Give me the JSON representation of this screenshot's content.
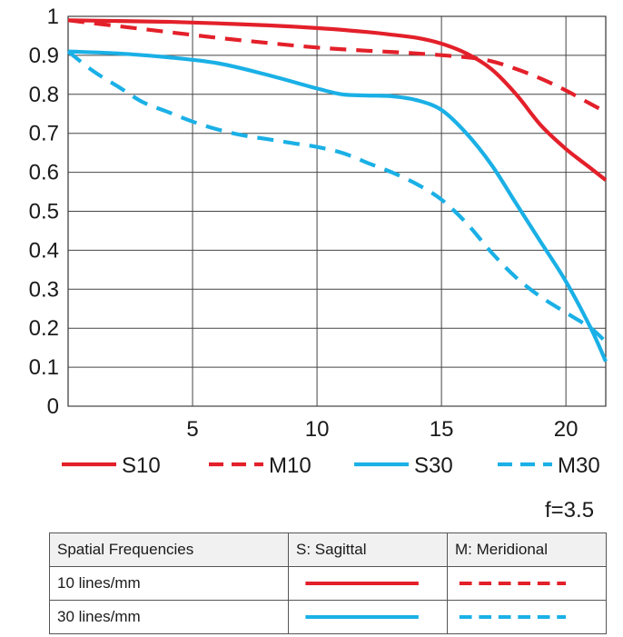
{
  "chart_data": {
    "type": "line",
    "title": "",
    "xlabel": "",
    "ylabel": "",
    "xlim": [
      0,
      21.6
    ],
    "ylim": [
      0,
      1
    ],
    "xticks": [
      5,
      10,
      15,
      20
    ],
    "yticks": [
      0,
      0.1,
      0.2,
      0.3,
      0.4,
      0.5,
      0.6,
      0.7,
      0.8,
      0.9,
      1
    ],
    "ytick_labels": [
      "0",
      "0.1",
      "0.2",
      "0.3",
      "0.4",
      "0.5",
      "0.6",
      "0.7",
      "0.8",
      "0.9",
      "1"
    ],
    "grid": true,
    "series": [
      {
        "name": "S10",
        "color": "#e3202a",
        "style": "solid",
        "x": [
          0,
          2,
          4,
          6,
          8,
          10,
          12,
          13,
          14,
          15,
          16,
          17,
          18,
          19,
          20,
          21,
          21.6
        ],
        "y": [
          0.99,
          0.988,
          0.986,
          0.982,
          0.977,
          0.97,
          0.96,
          0.953,
          0.945,
          0.93,
          0.905,
          0.865,
          0.8,
          0.72,
          0.66,
          0.61,
          0.58
        ]
      },
      {
        "name": "M10",
        "color": "#e3202a",
        "style": "dashed",
        "x": [
          0,
          2,
          4,
          6,
          8,
          10,
          12,
          14,
          16,
          17,
          18,
          19,
          20,
          21,
          21.6
        ],
        "y": [
          0.99,
          0.975,
          0.96,
          0.945,
          0.932,
          0.92,
          0.912,
          0.905,
          0.895,
          0.885,
          0.865,
          0.84,
          0.81,
          0.775,
          0.755
        ]
      },
      {
        "name": "S30",
        "color": "#1ab0e6",
        "style": "solid",
        "x": [
          0,
          2,
          4,
          6,
          8,
          10,
          11,
          12,
          13,
          14,
          15,
          16,
          17,
          18,
          19,
          20,
          21,
          21.6
        ],
        "y": [
          0.91,
          0.905,
          0.895,
          0.88,
          0.85,
          0.815,
          0.8,
          0.797,
          0.795,
          0.785,
          0.76,
          0.7,
          0.62,
          0.52,
          0.42,
          0.32,
          0.2,
          0.115
        ]
      },
      {
        "name": "M30",
        "color": "#1ab0e6",
        "style": "dashed",
        "x": [
          0,
          1,
          2,
          3,
          4,
          5,
          6,
          7,
          8,
          9,
          10,
          11,
          12,
          13,
          14,
          15,
          16,
          17,
          18,
          19,
          20,
          21,
          21.6
        ],
        "y": [
          0.91,
          0.86,
          0.82,
          0.78,
          0.755,
          0.73,
          0.71,
          0.695,
          0.685,
          0.675,
          0.665,
          0.65,
          0.625,
          0.6,
          0.57,
          0.53,
          0.47,
          0.395,
          0.33,
          0.28,
          0.24,
          0.2,
          0.165
        ]
      }
    ],
    "legend_position": "bottom"
  },
  "aperture_label": "f=3.5",
  "key_table": {
    "headers": [
      "Spatial Frequencies",
      "S: Sagittal",
      "M: Meridional"
    ],
    "rows": [
      {
        "label": "10 lines/mm",
        "color": "#e3202a"
      },
      {
        "label": "30 lines/mm",
        "color": "#1ab0e6"
      }
    ]
  }
}
